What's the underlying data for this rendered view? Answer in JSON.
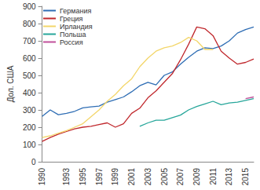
{
  "chart_data": {
    "type": "line",
    "y_label": "Дол. США",
    "categories": [
      "1990",
      null,
      null,
      "1993",
      null,
      "1995",
      null,
      "1997",
      null,
      "1999",
      null,
      "2001",
      null,
      "2003",
      null,
      "2005",
      null,
      "2007",
      null,
      "2009",
      null,
      "2011",
      null,
      "2013",
      null,
      "2015",
      null
    ],
    "series": [
      {
        "name": "Германия",
        "color": "#2e6db4",
        "values": [
          262,
          300,
          272,
          280,
          292,
          312,
          318,
          322,
          345,
          360,
          375,
          405,
          440,
          460,
          445,
          500,
          520,
          565,
          605,
          640,
          660,
          655,
          670,
          700,
          745,
          765,
          780
        ]
      },
      {
        "name": "Греция",
        "color": "#c0282d",
        "values": [
          118,
          140,
          160,
          175,
          190,
          200,
          205,
          215,
          225,
          200,
          220,
          280,
          310,
          370,
          410,
          460,
          510,
          590,
          680,
          780,
          770,
          730,
          640,
          600,
          565,
          575,
          595
        ]
      },
      {
        "name": "Ирландия",
        "color": "#f3d66a",
        "values": [
          140,
          150,
          165,
          180,
          200,
          220,
          260,
          300,
          350,
          390,
          440,
          480,
          550,
          600,
          640,
          660,
          670,
          690,
          720,
          700,
          650,
          650,
          null,
          null,
          null,
          null,
          null
        ]
      },
      {
        "name": "Польша",
        "color": "#26a69a",
        "values": [
          null,
          null,
          null,
          null,
          null,
          null,
          null,
          null,
          null,
          null,
          null,
          null,
          205,
          225,
          240,
          240,
          255,
          270,
          300,
          320,
          335,
          350,
          330,
          340,
          345,
          355,
          365
        ]
      },
      {
        "name": "Россия",
        "color": "#c0509a",
        "values": [
          null,
          null,
          null,
          null,
          null,
          null,
          null,
          null,
          null,
          null,
          null,
          null,
          null,
          null,
          null,
          null,
          null,
          null,
          null,
          null,
          null,
          null,
          null,
          null,
          null,
          365,
          375
        ]
      }
    ],
    "ylim": [
      0,
      900
    ],
    "yticks": [
      0,
      100,
      200,
      300,
      400,
      500,
      600,
      700,
      800,
      900
    ],
    "grid": false,
    "legend": "top-left"
  }
}
